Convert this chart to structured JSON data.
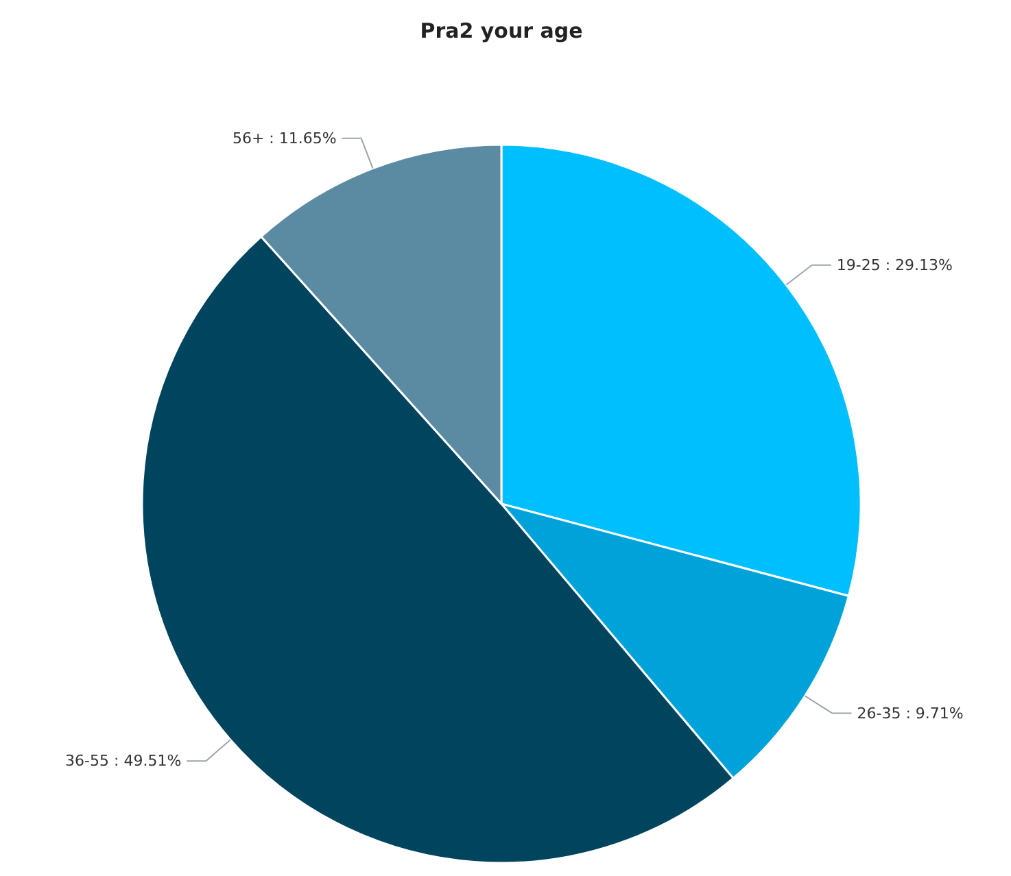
{
  "chart_data": {
    "type": "pie",
    "title": "Pra2 your age",
    "categories": [
      "19-25",
      "26-35",
      "36-55",
      "56+"
    ],
    "values": [
      29.13,
      9.71,
      49.51,
      11.65
    ],
    "value_labels": [
      "29.13%",
      "9.71%",
      "49.51%",
      "11.65%"
    ],
    "colors": [
      "#00bfff",
      "#00a3d9",
      "#00445e",
      "#5a8ba3"
    ]
  }
}
